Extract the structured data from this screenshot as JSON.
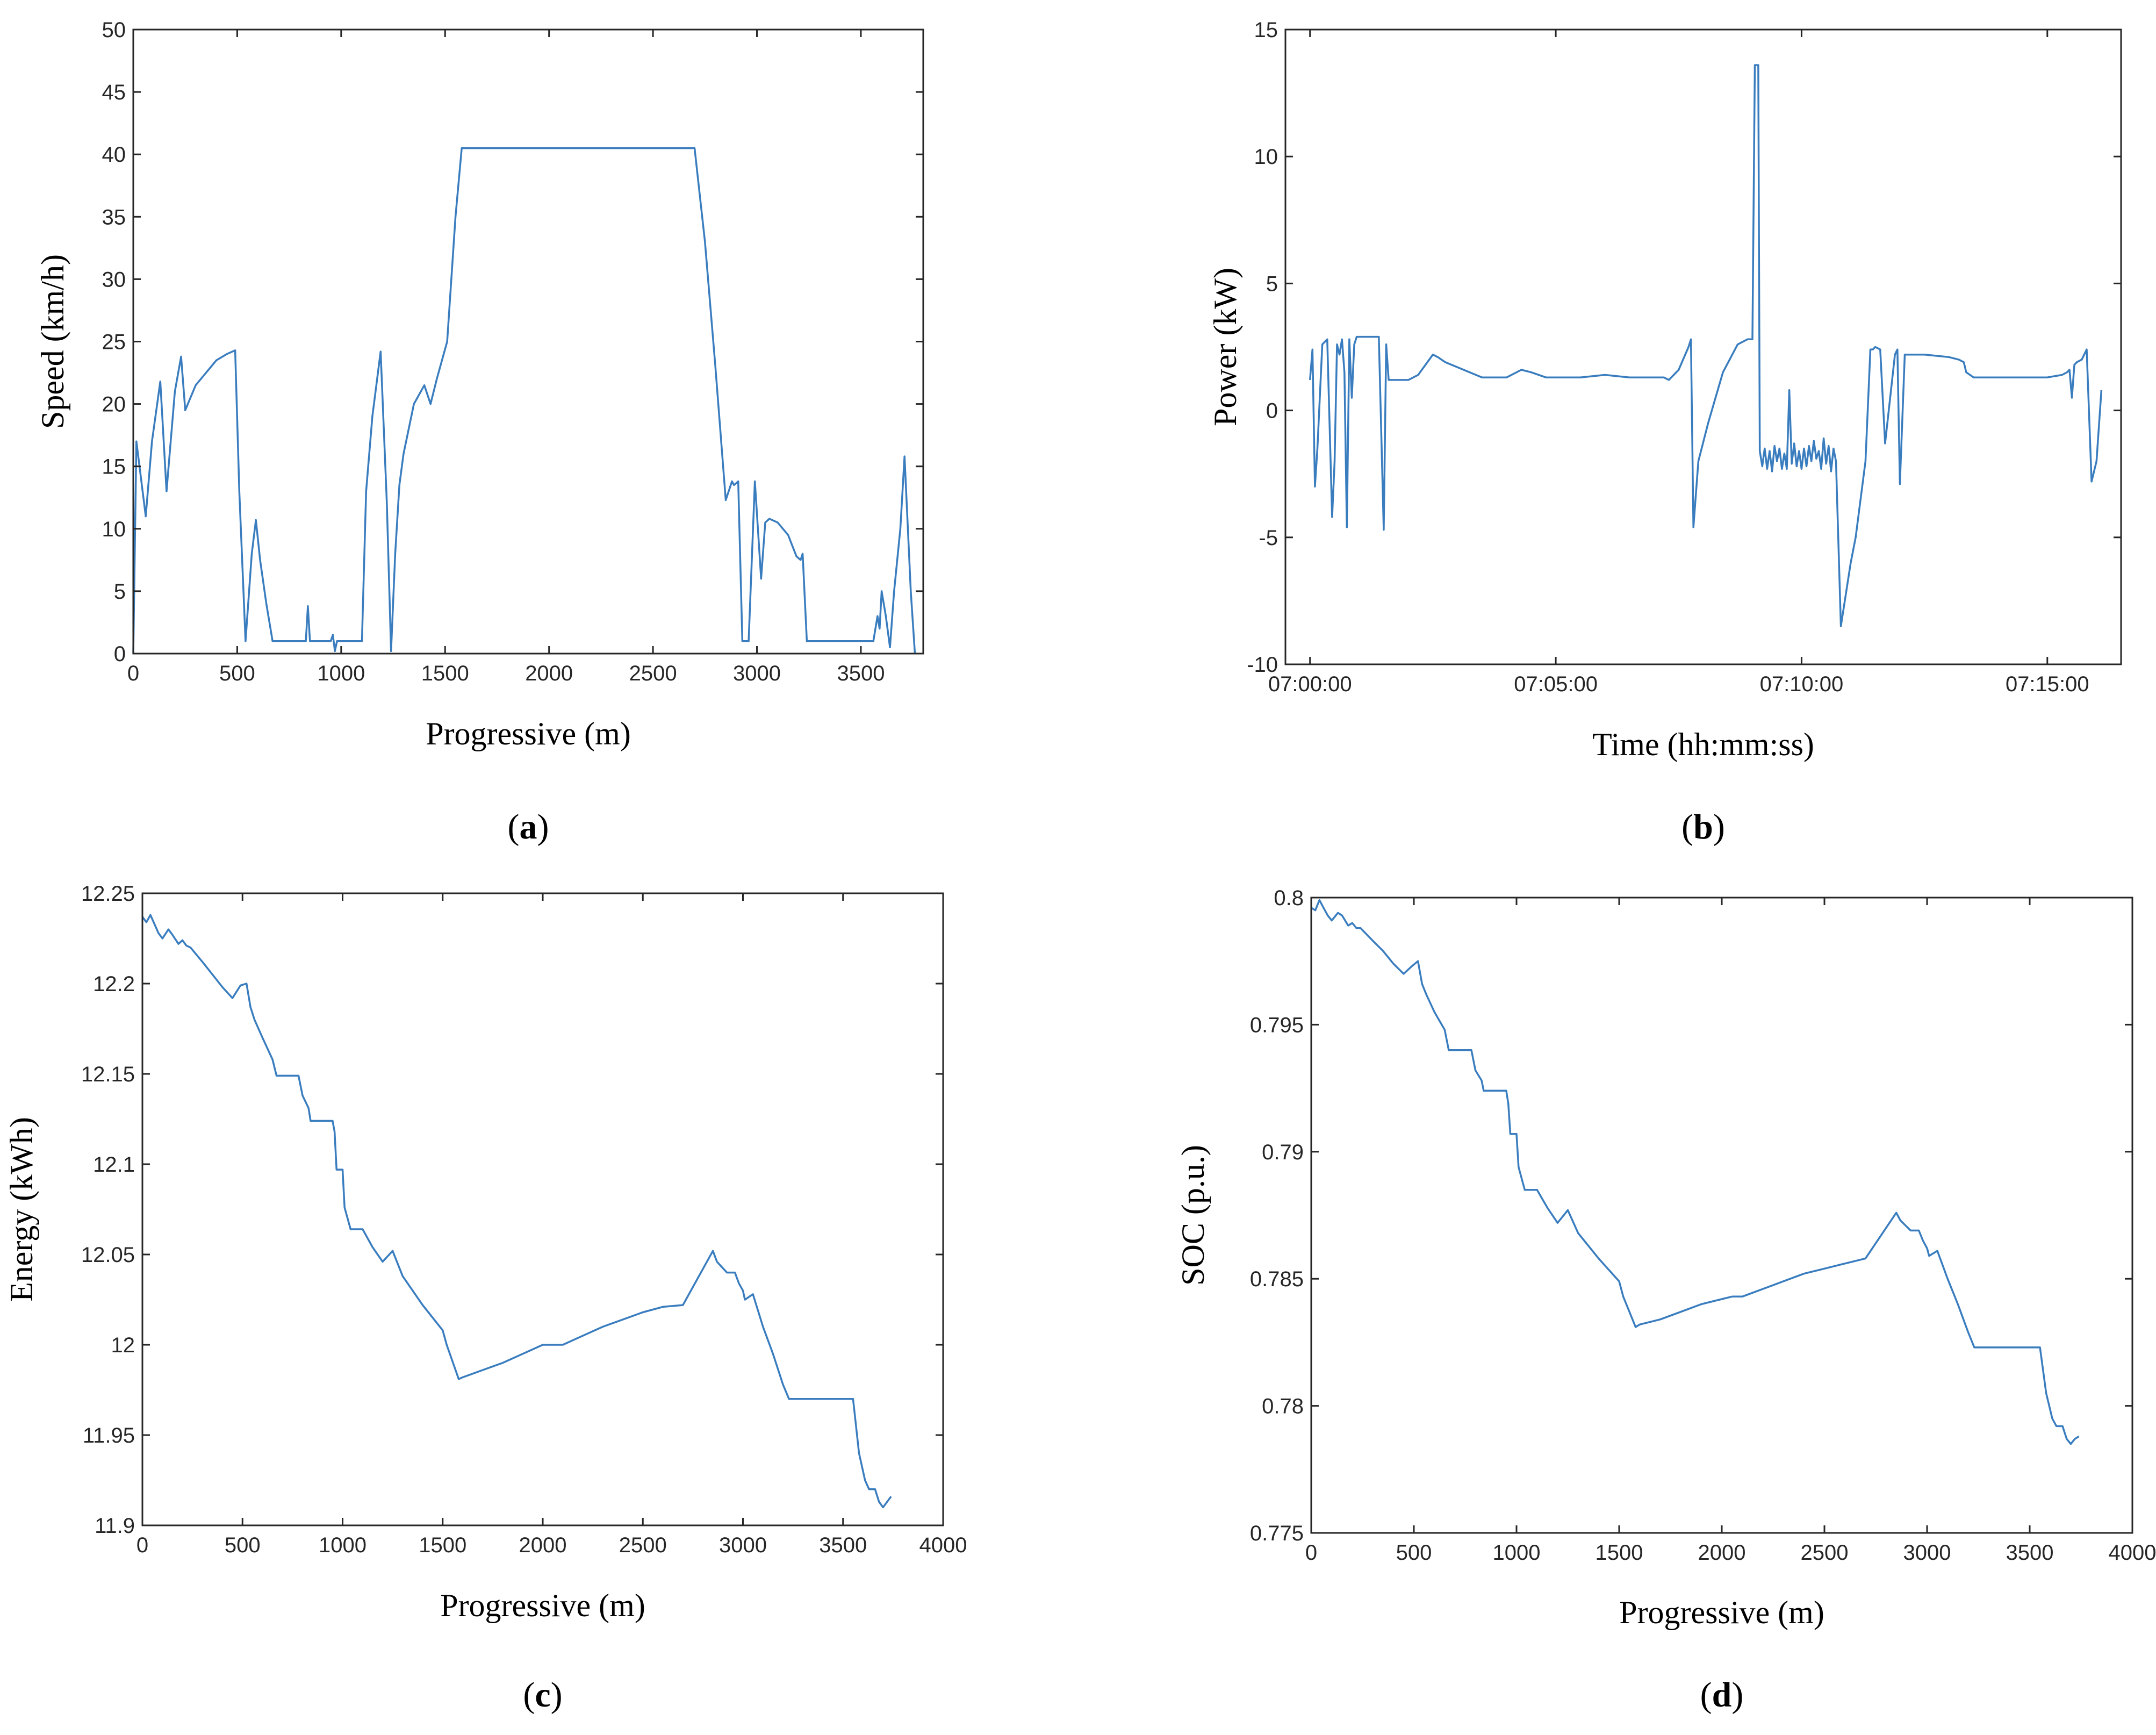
{
  "colors": {
    "series": "#3a7dbf",
    "axes": "#262626",
    "background": "#ffffff"
  },
  "chart_data": [
    {
      "id": "a",
      "type": "line",
      "panel_label": "a",
      "title": "",
      "xlabel": "Progressive (m)",
      "ylabel": "Speed (km/h)",
      "xlim": [
        0,
        3800
      ],
      "ylim": [
        0,
        50
      ],
      "xticks": [
        0,
        500,
        1000,
        1500,
        2000,
        2500,
        3000,
        3500
      ],
      "xtick_labels": [
        "0",
        "500",
        "1000",
        "1500",
        "2000",
        "2500",
        "3000",
        "3500"
      ],
      "yticks": [
        0,
        5,
        10,
        15,
        20,
        25,
        30,
        35,
        40,
        45,
        50
      ],
      "ytick_labels": [
        "0",
        "5",
        "10",
        "15",
        "20",
        "25",
        "30",
        "35",
        "40",
        "45",
        "50"
      ],
      "grid": false,
      "series": [
        {
          "name": "Speed",
          "x": [
            0,
            15,
            30,
            60,
            90,
            130,
            160,
            200,
            230,
            250,
            300,
            350,
            400,
            450,
            490,
            510,
            540,
            570,
            590,
            610,
            640,
            670,
            700,
            750,
            830,
            840,
            850,
            860,
            950,
            960,
            970,
            980,
            1000,
            1100,
            1120,
            1150,
            1190,
            1220,
            1240,
            1260,
            1280,
            1300,
            1350,
            1400,
            1430,
            1460,
            1510,
            1550,
            1580,
            1600,
            2700,
            2750,
            2800,
            2850,
            2880,
            2890,
            2910,
            2930,
            2940,
            2960,
            2990,
            3020,
            3040,
            3060,
            3100,
            3150,
            3190,
            3210,
            3220,
            3240,
            3260,
            3300,
            3400,
            3500,
            3560,
            3580,
            3590,
            3600,
            3620,
            3640,
            3660,
            3690,
            3710,
            3740,
            3760
          ],
          "y": [
            0,
            17,
            15,
            11,
            17,
            21.8,
            13,
            21,
            23.8,
            19.5,
            21.5,
            22.5,
            23.5,
            24,
            24.3,
            13,
            1,
            8,
            10.7,
            7.5,
            4,
            1,
            1,
            1,
            1,
            3.8,
            1,
            1,
            1,
            1.5,
            0.2,
            1,
            1,
            1,
            13,
            19,
            24.2,
            12,
            0.2,
            8,
            13.5,
            16,
            20,
            21.5,
            20,
            22,
            25,
            35,
            40.5,
            40.5,
            40.5,
            33,
            23,
            12.3,
            13.8,
            13.5,
            13.8,
            1,
            1,
            1,
            13.8,
            6,
            10.5,
            10.8,
            10.5,
            9.5,
            7.8,
            7.5,
            8,
            1,
            1,
            1,
            1,
            1,
            1,
            3,
            2,
            5,
            3,
            0.5,
            5,
            10,
            15.8,
            5,
            0
          ]
        }
      ]
    },
    {
      "id": "b",
      "type": "line",
      "panel_label": "b",
      "title": "",
      "xlabel": "Time (hh:mm:ss)",
      "ylabel": "Power (kW)",
      "x_unit": "minutes after 07:00:00",
      "xlim": [
        -0.5,
        16.5
      ],
      "ylim": [
        -10,
        15
      ],
      "xticks": [
        0,
        5,
        10,
        15
      ],
      "xtick_labels": [
        "07:00:00",
        "07:05:00",
        "07:10:00",
        "07:15:00"
      ],
      "yticks": [
        -10,
        -5,
        0,
        5,
        10,
        15
      ],
      "ytick_labels": [
        "-10",
        "-5",
        "0",
        "5",
        "10",
        "15"
      ],
      "grid": false,
      "series": [
        {
          "name": "Power",
          "x": [
            0,
            0.05,
            0.1,
            0.15,
            0.25,
            0.35,
            0.45,
            0.5,
            0.55,
            0.6,
            0.65,
            0.7,
            0.75,
            0.8,
            0.85,
            0.9,
            0.95,
            1.0,
            1.2,
            1.4,
            1.5,
            1.55,
            1.6,
            1.8,
            2.0,
            2.2,
            2.5,
            2.6,
            2.75,
            3.0,
            3.5,
            4.0,
            4.3,
            4.5,
            4.8,
            5.0,
            5.5,
            6.0,
            6.5,
            7.0,
            7.2,
            7.3,
            7.5,
            7.7,
            7.75,
            7.8,
            7.9,
            8.1,
            8.4,
            8.7,
            8.9,
            8.95,
            9.0,
            9.05,
            9.1,
            9.12,
            9.15,
            9.2,
            9.25,
            9.3,
            9.35,
            9.4,
            9.45,
            9.5,
            9.55,
            9.6,
            9.65,
            9.7,
            9.75,
            9.8,
            9.85,
            9.9,
            9.95,
            10.0,
            10.05,
            10.1,
            10.15,
            10.2,
            10.25,
            10.3,
            10.35,
            10.4,
            10.45,
            10.5,
            10.55,
            10.6,
            10.65,
            10.7,
            10.8,
            11.0,
            11.1,
            11.3,
            11.4,
            11.45,
            11.5,
            11.6,
            11.7,
            11.9,
            11.95,
            12.0,
            12.1,
            12.3,
            12.5,
            13.0,
            13.2,
            13.3,
            13.35,
            13.5,
            14.0,
            14.5,
            15.0,
            15.3,
            15.4,
            15.45,
            15.5,
            15.55,
            15.6,
            15.7,
            15.8,
            15.9,
            16.0,
            16.1
          ],
          "y": [
            1.2,
            2.4,
            -3,
            -1.5,
            2.6,
            2.8,
            -4.2,
            -2,
            2.6,
            2.2,
            2.8,
            1.5,
            -4.6,
            2.8,
            0.5,
            2.6,
            2.9,
            2.9,
            2.9,
            2.9,
            -4.7,
            2.6,
            1.2,
            1.2,
            1.2,
            1.4,
            2.2,
            2.1,
            1.9,
            1.7,
            1.3,
            1.3,
            1.6,
            1.5,
            1.3,
            1.3,
            1.3,
            1.4,
            1.3,
            1.3,
            1.3,
            1.2,
            1.6,
            2.5,
            2.8,
            -4.6,
            -2,
            -0.5,
            1.5,
            2.6,
            2.8,
            2.8,
            2.8,
            13.6,
            13.6,
            13.6,
            -1.6,
            -2.2,
            -1.5,
            -2.3,
            -1.6,
            -2.4,
            -1.4,
            -2.0,
            -1.5,
            -2.3,
            -1.7,
            -2.3,
            0.8,
            -2.1,
            -1.3,
            -2.2,
            -1.6,
            -2.3,
            -1.5,
            -2.2,
            -1.4,
            -2.0,
            -1.2,
            -1.9,
            -1.6,
            -2.3,
            -1.1,
            -2.1,
            -1.4,
            -2.4,
            -1.5,
            -2.0,
            -8.5,
            -6,
            -5,
            -2,
            2.4,
            2.4,
            2.5,
            2.4,
            -1.3,
            2.2,
            2.4,
            -2.9,
            2.2,
            2.2,
            2.2,
            2.1,
            2.0,
            1.9,
            1.5,
            1.3,
            1.3,
            1.3,
            1.3,
            1.4,
            1.5,
            1.6,
            0.5,
            1.8,
            1.9,
            2.0,
            2.4,
            -2.8,
            -2.0,
            0.8
          ]
        }
      ]
    },
    {
      "id": "c",
      "type": "line",
      "panel_label": "c",
      "title": "",
      "xlabel": "Progressive (m)",
      "ylabel": "Energy (kWh)",
      "xlim": [
        0,
        4000
      ],
      "ylim": [
        11.9,
        12.25
      ],
      "xticks": [
        0,
        500,
        1000,
        1500,
        2000,
        2500,
        3000,
        3500,
        4000
      ],
      "xtick_labels": [
        "0",
        "500",
        "1000",
        "1500",
        "2000",
        "2500",
        "3000",
        "3500",
        "4000"
      ],
      "yticks": [
        11.9,
        11.95,
        12.0,
        12.05,
        12.1,
        12.15,
        12.2,
        12.25
      ],
      "ytick_labels": [
        "11.9",
        "11.95",
        "12",
        "12.05",
        "12.1",
        "12.15",
        "12.2",
        "12.25"
      ],
      "grid": false,
      "series": [
        {
          "name": "Energy",
          "x": [
            0,
            20,
            40,
            60,
            80,
            100,
            130,
            150,
            180,
            200,
            220,
            240,
            300,
            350,
            400,
            450,
            490,
            520,
            540,
            560,
            600,
            650,
            670,
            700,
            780,
            800,
            830,
            840,
            950,
            960,
            970,
            1000,
            1010,
            1040,
            1100,
            1150,
            1200,
            1250,
            1300,
            1400,
            1500,
            1520,
            1580,
            1600,
            1700,
            1800,
            1900,
            2000,
            2050,
            2100,
            2200,
            2300,
            2400,
            2500,
            2600,
            2700,
            2850,
            2870,
            2920,
            2960,
            2980,
            3000,
            3010,
            3050,
            3100,
            3150,
            3200,
            3230,
            3300,
            3400,
            3500,
            3550,
            3580,
            3610,
            3630,
            3660,
            3680,
            3700,
            3720,
            3740
          ],
          "y": [
            12.237,
            12.234,
            12.238,
            12.233,
            12.228,
            12.225,
            12.23,
            12.227,
            12.222,
            12.224,
            12.221,
            12.22,
            12.212,
            12.205,
            12.198,
            12.192,
            12.199,
            12.2,
            12.187,
            12.18,
            12.17,
            12.158,
            12.149,
            12.149,
            12.149,
            12.138,
            12.131,
            12.124,
            12.124,
            12.118,
            12.097,
            12.097,
            12.076,
            12.064,
            12.064,
            12.054,
            12.046,
            12.052,
            12.038,
            12.022,
            12.008,
            12.0,
            11.981,
            11.982,
            11.986,
            11.99,
            11.995,
            12.0,
            12.0,
            12.0,
            12.005,
            12.01,
            12.014,
            12.018,
            12.021,
            12.022,
            12.052,
            12.046,
            12.04,
            12.04,
            12.034,
            12.03,
            12.025,
            12.028,
            12.01,
            11.995,
            11.978,
            11.97,
            11.97,
            11.97,
            11.97,
            11.97,
            11.94,
            11.925,
            11.92,
            11.92,
            11.913,
            11.91,
            11.913,
            11.916
          ]
        }
      ]
    },
    {
      "id": "d",
      "type": "line",
      "panel_label": "d",
      "title": "",
      "xlabel": "Progressive (m)",
      "ylabel": "SOC (p.u.)",
      "xlim": [
        0,
        4000
      ],
      "ylim": [
        0.775,
        0.8
      ],
      "xticks": [
        0,
        500,
        1000,
        1500,
        2000,
        2500,
        3000,
        3500,
        4000
      ],
      "xtick_labels": [
        "0",
        "500",
        "1000",
        "1500",
        "2000",
        "2500",
        "3000",
        "3500",
        "4000"
      ],
      "yticks": [
        0.775,
        0.78,
        0.785,
        0.79,
        0.795,
        0.8
      ],
      "ytick_labels": [
        "0.775",
        "0.78",
        "0.785",
        "0.79",
        "0.795",
        "0.8"
      ],
      "grid": false,
      "series": [
        {
          "name": "SOC",
          "x": [
            0,
            20,
            40,
            60,
            80,
            100,
            130,
            150,
            180,
            200,
            220,
            240,
            300,
            350,
            400,
            450,
            490,
            520,
            540,
            560,
            600,
            650,
            670,
            700,
            780,
            800,
            830,
            840,
            950,
            960,
            970,
            1000,
            1010,
            1040,
            1100,
            1150,
            1200,
            1250,
            1300,
            1400,
            1500,
            1520,
            1580,
            1600,
            1700,
            1800,
            1900,
            2000,
            2050,
            2100,
            2200,
            2300,
            2400,
            2500,
            2600,
            2700,
            2850,
            2870,
            2920,
            2960,
            2980,
            3000,
            3010,
            3050,
            3100,
            3150,
            3200,
            3230,
            3300,
            3400,
            3500,
            3550,
            3580,
            3610,
            3630,
            3660,
            3680,
            3700,
            3720,
            3740
          ],
          "y": [
            0.7996,
            0.7995,
            0.7999,
            0.7996,
            0.7993,
            0.7991,
            0.7994,
            0.7993,
            0.7989,
            0.799,
            0.7988,
            0.7988,
            0.7983,
            0.7979,
            0.7974,
            0.797,
            0.7973,
            0.7975,
            0.7966,
            0.7962,
            0.7955,
            0.7948,
            0.794,
            0.794,
            0.794,
            0.7932,
            0.7928,
            0.7924,
            0.7924,
            0.7919,
            0.7907,
            0.7907,
            0.7894,
            0.7885,
            0.7885,
            0.7878,
            0.7872,
            0.7877,
            0.7868,
            0.7858,
            0.7849,
            0.7843,
            0.7831,
            0.7832,
            0.7834,
            0.7837,
            0.784,
            0.7842,
            0.7843,
            0.7843,
            0.7846,
            0.7849,
            0.7852,
            0.7854,
            0.7856,
            0.7858,
            0.7876,
            0.7873,
            0.7869,
            0.7869,
            0.7865,
            0.7862,
            0.7859,
            0.7861,
            0.785,
            0.784,
            0.7829,
            0.7823,
            0.7823,
            0.7823,
            0.7823,
            0.7823,
            0.7805,
            0.7795,
            0.7792,
            0.7792,
            0.7787,
            0.7785,
            0.7787,
            0.7788
          ]
        }
      ]
    }
  ]
}
